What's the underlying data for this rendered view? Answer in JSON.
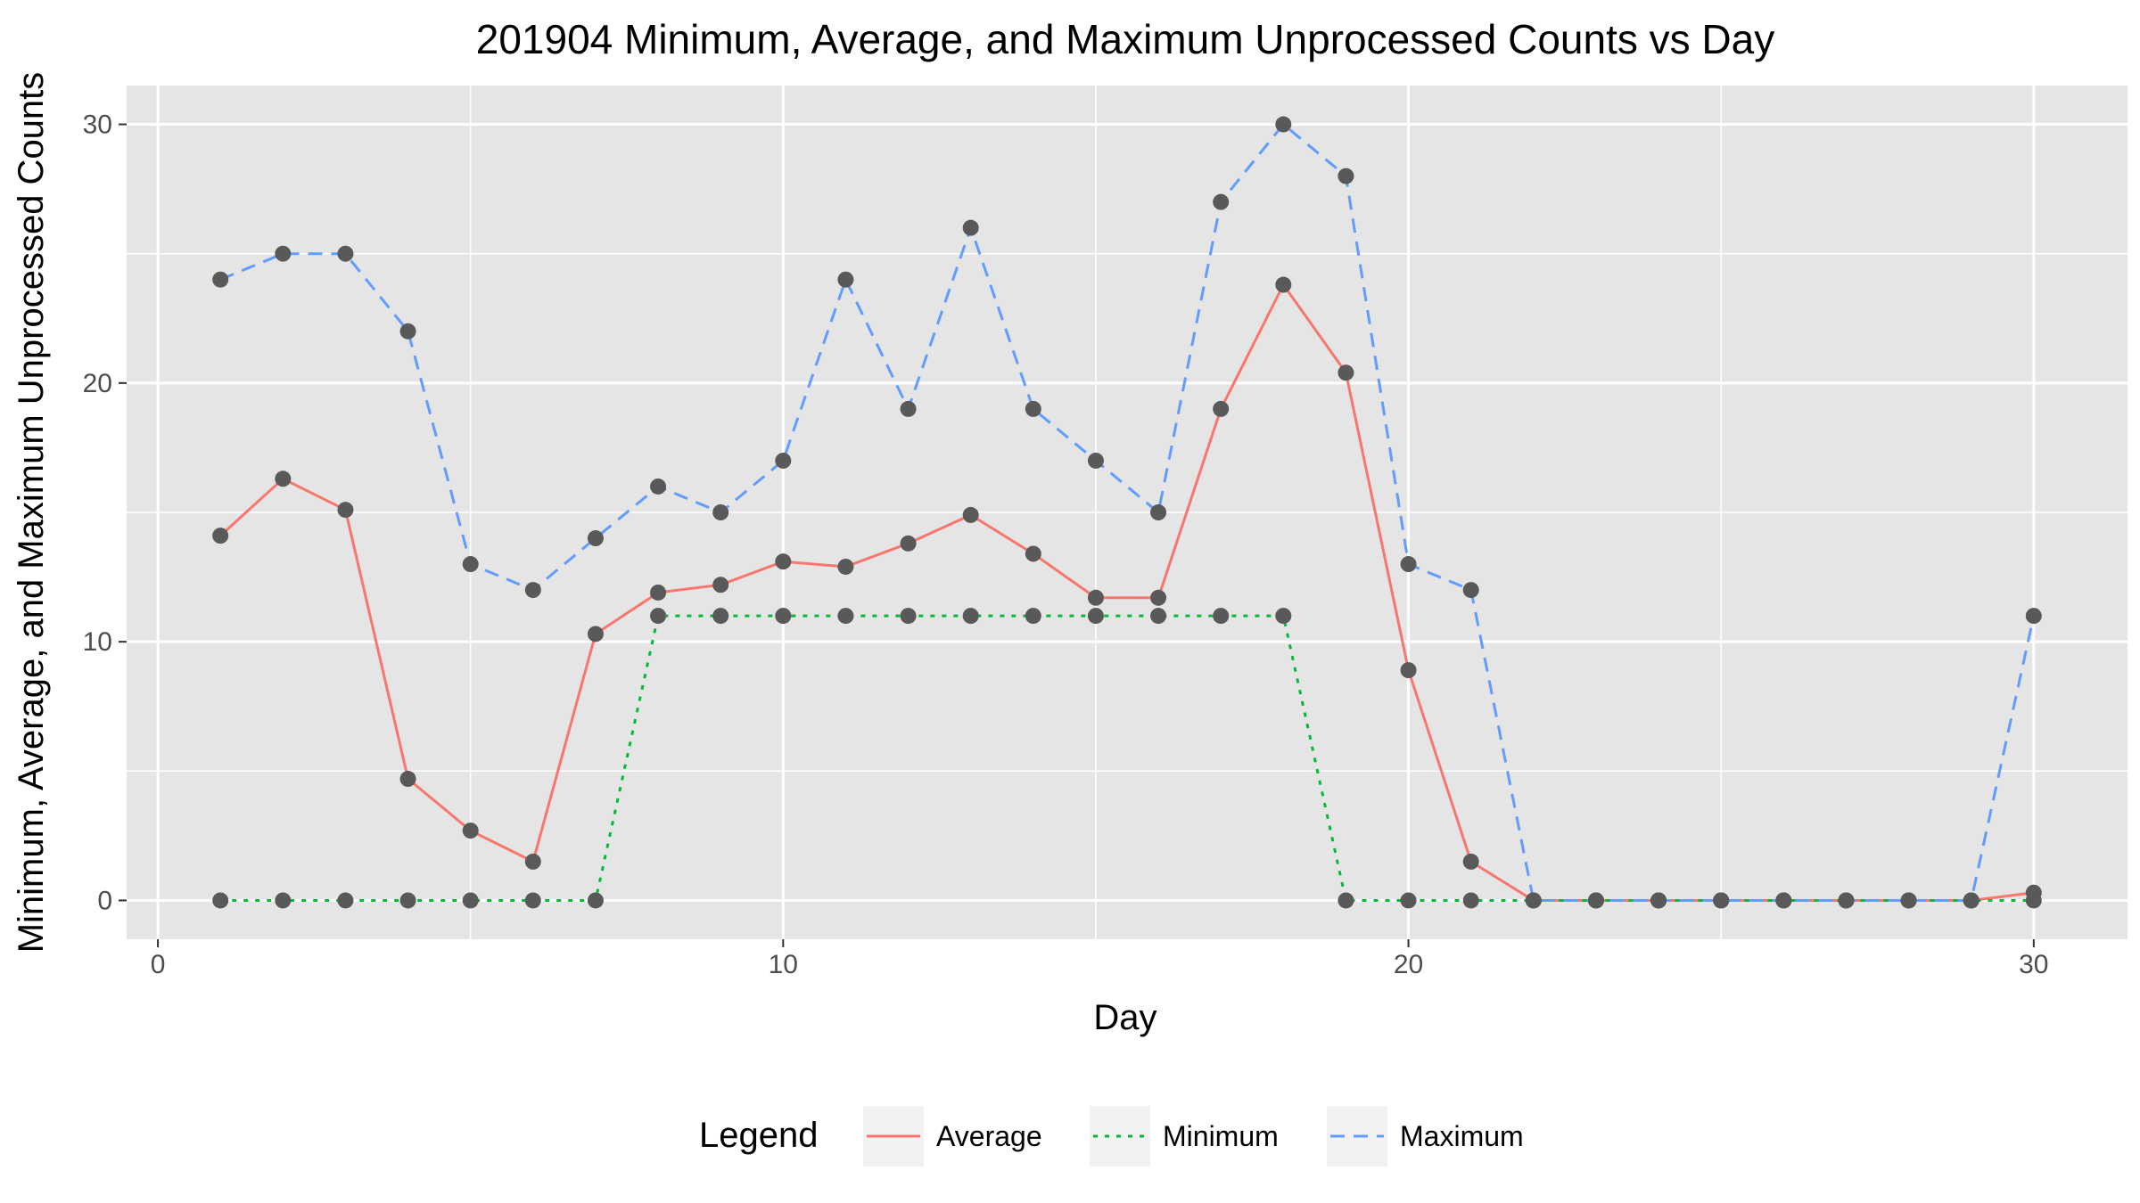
{
  "chart_data": {
    "type": "line",
    "title": "201904 Minimum, Average, and Maximum Unprocessed Counts vs Day",
    "xlabel": "Day",
    "ylabel": "Minimum, Average, and Maximum Unprocessed Counts",
    "xlim": [
      -0.5,
      31.5
    ],
    "ylim": [
      -1.5,
      31.5
    ],
    "x_ticks": [
      0,
      10,
      20,
      30
    ],
    "y_ticks": [
      0,
      10,
      20,
      30
    ],
    "grid": true,
    "background": "#e5e5e5",
    "legend": {
      "title": "Legend",
      "position": "bottom"
    },
    "x": [
      1,
      2,
      3,
      4,
      5,
      6,
      7,
      8,
      9,
      10,
      11,
      12,
      13,
      14,
      15,
      16,
      17,
      18,
      19,
      20,
      21,
      22,
      23,
      24,
      25,
      26,
      27,
      28,
      29,
      30
    ],
    "series": [
      {
        "name": "Average",
        "color": "#f8766d",
        "dash": "solid",
        "values": [
          14.1,
          16.3,
          15.1,
          4.7,
          2.7,
          1.5,
          10.3,
          11.9,
          12.2,
          13.1,
          12.9,
          13.8,
          14.9,
          13.4,
          11.7,
          11.7,
          19.0,
          23.8,
          20.4,
          8.9,
          1.5,
          0,
          0,
          0,
          0,
          0,
          0,
          0,
          0,
          0.3
        ]
      },
      {
        "name": "Minimum",
        "color": "#00ba38",
        "dash": "dotted",
        "values": [
          0,
          0,
          0,
          0,
          0,
          0,
          0,
          11,
          11,
          11,
          11,
          11,
          11,
          11,
          11,
          11,
          11,
          11,
          0,
          0,
          0,
          0,
          0,
          0,
          0,
          0,
          0,
          0,
          0,
          0
        ]
      },
      {
        "name": "Maximum",
        "color": "#619cff",
        "dash": "dashed",
        "values": [
          24,
          25,
          25,
          22,
          13,
          12,
          14,
          16,
          15,
          17,
          24,
          19,
          26,
          19,
          17,
          15,
          27,
          30,
          28,
          13,
          12,
          0,
          0,
          0,
          0,
          0,
          0,
          0,
          0,
          11
        ]
      }
    ]
  }
}
